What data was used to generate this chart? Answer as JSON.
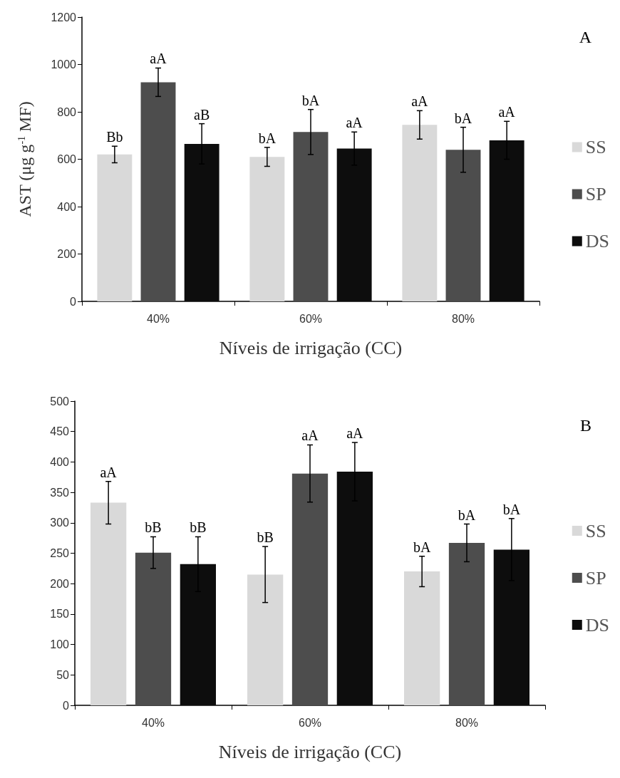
{
  "chart_data": [
    {
      "type": "bar",
      "categories": [
        "40%",
        "60%",
        "80%"
      ],
      "xlabel": "Níveis de irrigação (CC)",
      "ylabel": "AST (μg g$^{-1}$ MF)",
      "ylim": [
        0,
        1200
      ],
      "yticks": [
        0,
        200,
        400,
        600,
        800,
        1000,
        1200
      ],
      "grid": false,
      "legend": "right",
      "annotations": [
        "A"
      ],
      "series": [
        {
          "name": "SS",
          "color": "#d9d9d9",
          "values": [
            620,
            610,
            745
          ],
          "errors": [
            35,
            40,
            60
          ],
          "value_labels": [
            "Bb",
            "bA",
            "aA"
          ]
        },
        {
          "name": "SP",
          "color": "#4d4d4d",
          "values": [
            925,
            715,
            640
          ],
          "errors": [
            60,
            95,
            95
          ],
          "value_labels": [
            "aA",
            "bA",
            "bA"
          ]
        },
        {
          "name": "DS",
          "color": "#0d0d0d",
          "values": [
            665,
            645,
            680
          ],
          "errors": [
            85,
            70,
            80
          ],
          "value_labels": [
            "aB",
            "aA",
            "aA"
          ]
        }
      ]
    },
    {
      "type": "bar",
      "categories": [
        "40%",
        "60%",
        "80%"
      ],
      "xlabel": "Níveis de irrigação (CC)",
      "ylim": [
        0,
        500
      ],
      "yticks": [
        0,
        50,
        100,
        150,
        200,
        250,
        300,
        350,
        400,
        450,
        500
      ],
      "grid": false,
      "legend": "right",
      "annotations": [
        "B"
      ],
      "series": [
        {
          "name": "SS",
          "color": "#d9d9d9",
          "values": [
            333,
            215,
            220
          ],
          "errors": [
            35,
            46,
            25
          ],
          "value_labels": [
            "aA",
            "bB",
            "bA"
          ]
        },
        {
          "name": "SP",
          "color": "#4d4d4d",
          "values": [
            251,
            381,
            267
          ],
          "errors": [
            26,
            47,
            31
          ],
          "value_labels": [
            "bB",
            "aA",
            "bA"
          ]
        },
        {
          "name": "DS",
          "color": "#0d0d0d",
          "values": [
            232,
            384,
            256
          ],
          "errors": [
            45,
            48,
            51
          ],
          "value_labels": [
            "bB",
            "aA",
            "bA"
          ]
        }
      ]
    }
  ]
}
